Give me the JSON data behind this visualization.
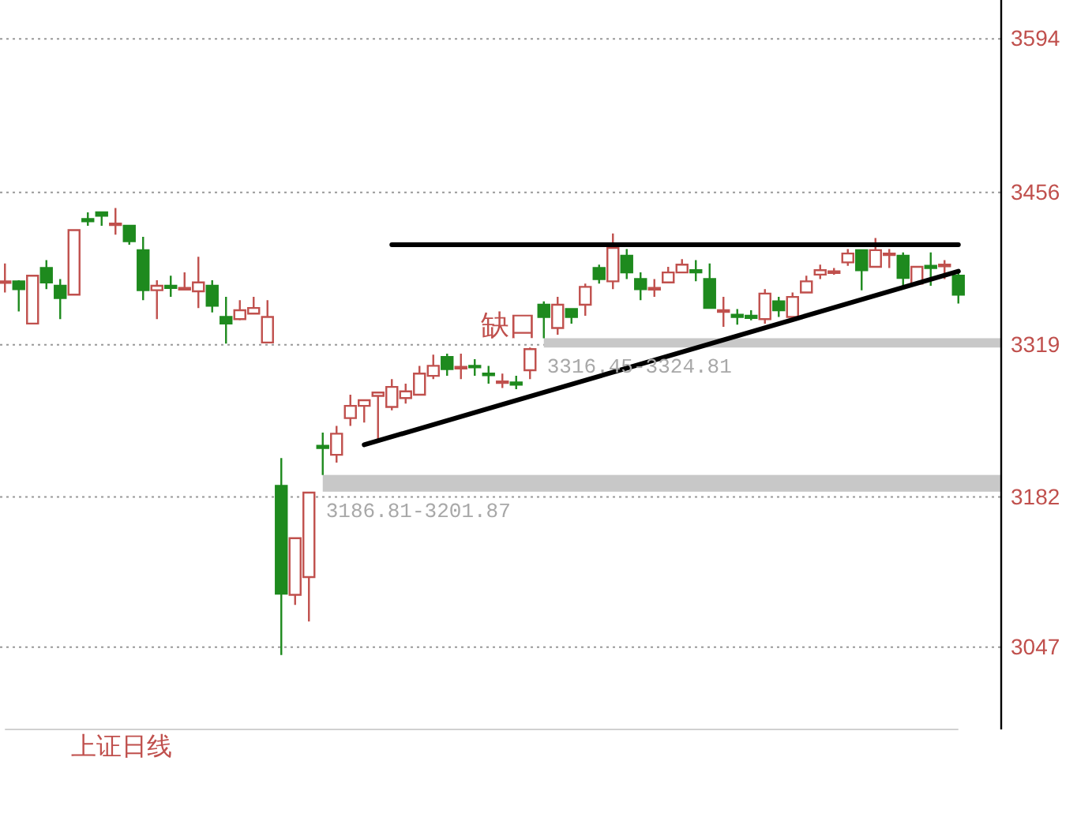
{
  "chart_data": {
    "type": "candlestick",
    "title": "上证日线",
    "categories": [
      null,
      null,
      null,
      null,
      null,
      null,
      null,
      null,
      null,
      null,
      null,
      null,
      null,
      null,
      null,
      null,
      null,
      null,
      null,
      null,
      null,
      null,
      null,
      null,
      null,
      null,
      null,
      null,
      null,
      null,
      null,
      null,
      null,
      null,
      null,
      null,
      null,
      null,
      null,
      null,
      null,
      null,
      null,
      null,
      null,
      null,
      null,
      null,
      null,
      null,
      null,
      null,
      null,
      null,
      null,
      null,
      null,
      null,
      null,
      null,
      null,
      null,
      null,
      null,
      null,
      null,
      null,
      null,
      null,
      null
    ],
    "ylim": [
      2973,
      3629
    ],
    "yticks": [
      3594,
      3456,
      3319,
      3182,
      3047
    ],
    "grid": "y",
    "tick_labels": "y",
    "ohlc": [
      [
        3375,
        3392,
        3366,
        3376
      ],
      [
        3376,
        3377,
        3349,
        3369
      ],
      [
        3338,
        3381,
        3338,
        3381
      ],
      [
        3388,
        3395,
        3369,
        3375
      ],
      [
        3372,
        3378,
        3342,
        3361
      ],
      [
        3364,
        3422,
        3364,
        3422
      ],
      [
        3432,
        3438,
        3426,
        3430
      ],
      [
        3438,
        3438,
        3426,
        3435
      ],
      [
        3427,
        3442,
        3418,
        3428
      ],
      [
        3426,
        3426,
        3409,
        3412
      ],
      [
        3404,
        3416,
        3359,
        3368
      ],
      [
        3368,
        3377,
        3342,
        3372
      ],
      [
        3372,
        3381,
        3362,
        3370
      ],
      [
        3369,
        3384,
        3368,
        3370
      ],
      [
        3367,
        3398,
        3352,
        3375
      ],
      [
        3372,
        3377,
        3348,
        3354
      ],
      [
        3344,
        3362,
        3320,
        3338
      ],
      [
        3342,
        3359,
        3341,
        3350
      ],
      [
        3347,
        3362,
        3347,
        3352
      ],
      [
        3321,
        3359,
        3321,
        3344
      ],
      [
        3192,
        3217,
        3040,
        3095
      ],
      [
        3094,
        3145,
        3085,
        3145
      ],
      [
        3110,
        3186.81,
        3070,
        3186
      ],
      [
        3228,
        3240,
        3201.87,
        3226
      ],
      [
        3220,
        3246,
        3213,
        3239
      ],
      [
        3253,
        3274,
        3246,
        3264
      ],
      [
        3264,
        3269,
        3249,
        3269
      ],
      [
        3273,
        3276,
        3234,
        3276
      ],
      [
        3263,
        3288,
        3260,
        3281
      ],
      [
        3271,
        3284,
        3266,
        3277
      ],
      [
        3274,
        3300,
        3274,
        3293
      ],
      [
        3291,
        3310,
        3288,
        3300
      ],
      [
        3308,
        3311,
        3291,
        3297
      ],
      [
        3298,
        3311,
        3288,
        3299
      ],
      [
        3300,
        3306,
        3291,
        3299
      ],
      [
        3293,
        3300,
        3284,
        3292
      ],
      [
        3285,
        3293,
        3280,
        3286
      ],
      [
        3285,
        3291,
        3279,
        3283
      ],
      [
        3296,
        3316.45,
        3288,
        3315
      ],
      [
        3355,
        3358,
        3324.81,
        3344
      ],
      [
        3334,
        3362,
        3328,
        3355
      ],
      [
        3351,
        3351,
        3338,
        3344
      ],
      [
        3355,
        3374,
        3345,
        3371
      ],
      [
        3388,
        3391,
        3374,
        3378
      ],
      [
        3376,
        3419,
        3369,
        3406
      ],
      [
        3399,
        3405,
        3378,
        3384
      ],
      [
        3378,
        3384,
        3359,
        3369
      ],
      [
        3369,
        3378,
        3362,
        3370
      ],
      [
        3375,
        3389,
        3375,
        3384
      ],
      [
        3384,
        3396,
        3384,
        3391
      ],
      [
        3386,
        3395,
        3376,
        3384
      ],
      [
        3378,
        3392,
        3352,
        3352
      ],
      [
        3349,
        3362,
        3335,
        3350
      ],
      [
        3346,
        3351,
        3337,
        3344
      ],
      [
        3345,
        3350,
        3341,
        3343
      ],
      [
        3342,
        3369,
        3338,
        3365
      ],
      [
        3358,
        3362,
        3344,
        3350
      ],
      [
        3344,
        3366,
        3342,
        3362
      ],
      [
        3366,
        3381,
        3366,
        3376
      ],
      [
        3382,
        3391,
        3378,
        3386
      ],
      [
        3384,
        3388,
        3382,
        3385
      ],
      [
        3393,
        3405,
        3390,
        3401
      ],
      [
        3404,
        3404,
        3368,
        3386
      ],
      [
        3389,
        3415,
        3389,
        3404
      ],
      [
        3400,
        3405,
        3388,
        3401
      ],
      [
        3399,
        3402,
        3372,
        3379
      ],
      [
        3374,
        3389,
        3374,
        3389
      ],
      [
        3390,
        3402,
        3372,
        3388
      ],
      [
        3390,
        3395,
        3378,
        3391
      ],
      [
        3381,
        3385,
        3356,
        3364
      ]
    ],
    "series": [
      {
        "type": "line",
        "color": "#000000",
        "values": [
          null,
          null,
          null,
          null,
          null,
          null,
          null,
          null,
          null,
          null,
          null,
          null,
          null,
          null,
          null,
          null,
          null,
          null,
          null,
          null,
          null,
          null,
          null,
          null,
          null,
          null,
          null,
          null,
          3409,
          null,
          null,
          null,
          null,
          null,
          null,
          null,
          null,
          null,
          null,
          null,
          null,
          null,
          null,
          null,
          null,
          null,
          null,
          null,
          null,
          null,
          null,
          null,
          null,
          null,
          null,
          null,
          null,
          null,
          null,
          null,
          null,
          null,
          null,
          null,
          null,
          null,
          null,
          null,
          null,
          3409
        ]
      },
      {
        "type": "line",
        "color": "#000000",
        "values": [
          null,
          null,
          null,
          null,
          null,
          null,
          null,
          null,
          null,
          null,
          null,
          null,
          null,
          null,
          null,
          null,
          null,
          null,
          null,
          null,
          null,
          null,
          null,
          null,
          null,
          null,
          3229,
          null,
          null,
          null,
          null,
          null,
          null,
          null,
          null,
          null,
          null,
          null,
          null,
          null,
          null,
          null,
          null,
          null,
          null,
          null,
          null,
          null,
          null,
          null,
          null,
          null,
          null,
          null,
          null,
          null,
          null,
          null,
          null,
          null,
          null,
          null,
          null,
          null,
          null,
          null,
          null,
          null,
          null,
          3385
        ]
      }
    ],
    "bands": [
      {
        "axis": "y",
        "from": 3186.81,
        "to": 3201.87,
        "label": "3186.81-3201.87",
        "color": "#c8c8c8"
      },
      {
        "axis": "y",
        "from": 3316.45,
        "to": 3324.81,
        "label": "3316.45-3324.81",
        "color": "#c8c8c8"
      }
    ],
    "annotations": [
      "缺口"
    ]
  }
}
